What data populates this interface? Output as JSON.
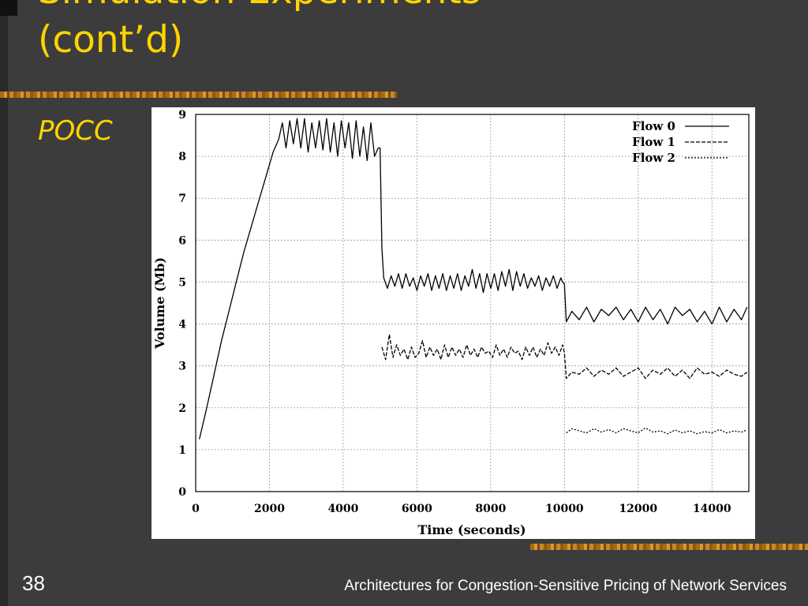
{
  "slide": {
    "title": "Simulation Experiments\n(cont’d)",
    "subtitle": "POCC",
    "slide_number": "38",
    "footer": "Architectures for Congestion-Sensitive Pricing of Network Services",
    "accent_color": "#ffd400",
    "background_color": "#3c3c3c"
  },
  "chart_data": {
    "type": "line",
    "xlabel": "Time (seconds)",
    "ylabel": "Volume (Mb)",
    "xlim": [
      0,
      15000
    ],
    "ylim": [
      0,
      9
    ],
    "xticks": [
      "0",
      "2000",
      "4000",
      "6000",
      "8000",
      "10000",
      "12000",
      "14000"
    ],
    "yticks": [
      "0",
      "1",
      "2",
      "3",
      "4",
      "5",
      "6",
      "7",
      "8",
      "9"
    ],
    "grid": true,
    "legend_position": "top-right",
    "series": [
      {
        "name": "Flow 0",
        "style": "solid",
        "x": [
          100,
          300,
          500,
          700,
          900,
          1100,
          1300,
          1500,
          1700,
          1900,
          2100,
          2250,
          2350,
          2450,
          2550,
          2650,
          2750,
          2850,
          2950,
          3050,
          3150,
          3250,
          3350,
          3450,
          3550,
          3650,
          3750,
          3850,
          3950,
          4050,
          4150,
          4250,
          4350,
          4450,
          4550,
          4650,
          4750,
          4850,
          4950,
          5000,
          5050,
          5100,
          5200,
          5300,
          5400,
          5500,
          5600,
          5700,
          5800,
          5900,
          6000,
          6100,
          6200,
          6300,
          6400,
          6500,
          6600,
          6700,
          6800,
          6900,
          7000,
          7100,
          7200,
          7300,
          7400,
          7500,
          7600,
          7700,
          7800,
          7900,
          8000,
          8100,
          8200,
          8300,
          8400,
          8500,
          8600,
          8700,
          8800,
          8900,
          9000,
          9100,
          9200,
          9300,
          9400,
          9500,
          9600,
          9700,
          9800,
          9900,
          9950,
          10000,
          10050,
          10200,
          10400,
          10600,
          10800,
          11000,
          11200,
          11400,
          11600,
          11800,
          12000,
          12200,
          12400,
          12600,
          12800,
          13000,
          13200,
          13400,
          13600,
          13800,
          14000,
          14200,
          14400,
          14600,
          14800,
          14950
        ],
        "y": [
          1.25,
          2.0,
          2.8,
          3.6,
          4.3,
          5.0,
          5.7,
          6.3,
          6.9,
          7.5,
          8.1,
          8.4,
          8.8,
          8.2,
          8.85,
          8.3,
          8.9,
          8.2,
          8.9,
          8.1,
          8.8,
          8.2,
          8.85,
          8.15,
          8.9,
          8.1,
          8.8,
          8.0,
          8.85,
          8.2,
          8.8,
          7.95,
          8.85,
          8.0,
          8.7,
          7.9,
          8.8,
          8.0,
          8.2,
          8.2,
          5.8,
          5.1,
          4.85,
          5.15,
          4.9,
          5.2,
          4.85,
          5.2,
          4.9,
          5.1,
          4.8,
          5.15,
          4.9,
          5.2,
          4.8,
          5.15,
          4.85,
          5.2,
          4.8,
          5.15,
          4.85,
          5.2,
          4.8,
          5.15,
          4.9,
          5.3,
          4.85,
          5.2,
          4.75,
          5.2,
          4.85,
          5.2,
          4.8,
          5.25,
          4.9,
          5.3,
          4.8,
          5.25,
          4.9,
          5.2,
          4.85,
          5.1,
          4.9,
          5.15,
          4.8,
          5.1,
          4.9,
          5.15,
          4.85,
          5.1,
          5.0,
          4.95,
          4.05,
          4.3,
          4.1,
          4.4,
          4.05,
          4.35,
          4.2,
          4.4,
          4.1,
          4.35,
          4.05,
          4.4,
          4.1,
          4.35,
          4.0,
          4.4,
          4.2,
          4.35,
          4.05,
          4.3,
          4.0,
          4.4,
          4.05,
          4.35,
          4.1,
          4.4
        ]
      },
      {
        "name": "Flow 1",
        "style": "dashed",
        "x": [
          5050,
          5150,
          5250,
          5350,
          5450,
          5550,
          5650,
          5750,
          5850,
          5950,
          6050,
          6150,
          6250,
          6350,
          6450,
          6550,
          6650,
          6750,
          6850,
          6950,
          7050,
          7150,
          7250,
          7350,
          7450,
          7550,
          7650,
          7750,
          7850,
          7950,
          8050,
          8150,
          8250,
          8350,
          8450,
          8550,
          8650,
          8750,
          8850,
          8950,
          9050,
          9150,
          9250,
          9350,
          9450,
          9550,
          9650,
          9750,
          9850,
          9950,
          10000,
          10050,
          10200,
          10400,
          10600,
          10800,
          11000,
          11200,
          11400,
          11600,
          11800,
          12000,
          12200,
          12400,
          12600,
          12800,
          13000,
          13200,
          13400,
          13600,
          13800,
          14000,
          14200,
          14400,
          14600,
          14800,
          14950
        ],
        "y": [
          3.45,
          3.15,
          3.75,
          3.2,
          3.5,
          3.25,
          3.4,
          3.15,
          3.45,
          3.2,
          3.3,
          3.6,
          3.2,
          3.45,
          3.25,
          3.4,
          3.15,
          3.5,
          3.2,
          3.45,
          3.25,
          3.4,
          3.2,
          3.5,
          3.25,
          3.4,
          3.2,
          3.45,
          3.3,
          3.35,
          3.2,
          3.5,
          3.25,
          3.4,
          3.2,
          3.45,
          3.3,
          3.35,
          3.15,
          3.45,
          3.25,
          3.45,
          3.2,
          3.4,
          3.25,
          3.55,
          3.3,
          3.45,
          3.25,
          3.5,
          3.3,
          2.7,
          2.85,
          2.8,
          2.95,
          2.75,
          2.9,
          2.8,
          2.95,
          2.75,
          2.85,
          2.95,
          2.7,
          2.9,
          2.8,
          2.95,
          2.75,
          2.9,
          2.7,
          2.95,
          2.8,
          2.85,
          2.75,
          2.9,
          2.8,
          2.75,
          2.85
        ]
      },
      {
        "name": "Flow 2",
        "style": "dotted",
        "x": [
          10050,
          10200,
          10400,
          10600,
          10800,
          11000,
          11200,
          11400,
          11600,
          11800,
          12000,
          12200,
          12400,
          12600,
          12800,
          13000,
          13200,
          13400,
          13600,
          13800,
          14000,
          14200,
          14400,
          14600,
          14800,
          14950
        ],
        "y": [
          1.4,
          1.5,
          1.45,
          1.4,
          1.5,
          1.42,
          1.48,
          1.4,
          1.5,
          1.45,
          1.4,
          1.52,
          1.42,
          1.45,
          1.38,
          1.47,
          1.4,
          1.45,
          1.38,
          1.43,
          1.4,
          1.48,
          1.4,
          1.45,
          1.42,
          1.47
        ]
      }
    ]
  }
}
